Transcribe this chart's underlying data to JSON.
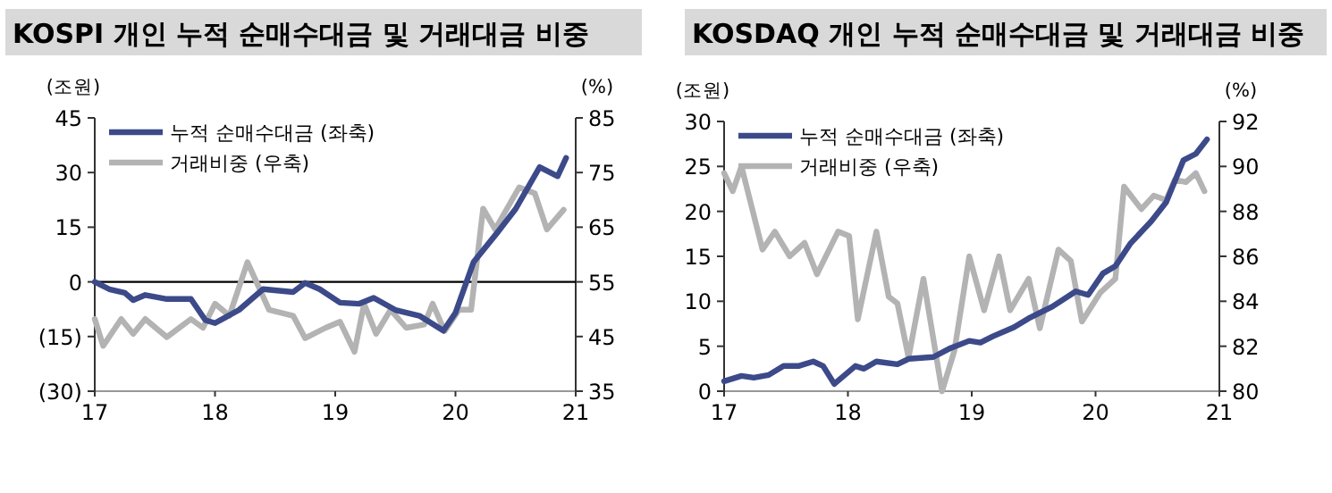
{
  "chart_data": [
    {
      "type": "line",
      "title": "KOSPI 개인 누적 순매수대금 및 거래대금 비중",
      "ylabel": "(조원)",
      "y2label": "(%)",
      "xlim": [
        17,
        21
      ],
      "xticks": [
        17,
        18,
        19,
        20,
        21
      ],
      "ylim": [
        -30,
        45
      ],
      "yticks": [
        {
          "value": -30,
          "label": "(30)"
        },
        {
          "value": -15,
          "label": "(15)"
        },
        0,
        15,
        30,
        45
      ],
      "y2lim": [
        35,
        85
      ],
      "y2ticks": [
        35,
        45,
        55,
        65,
        75,
        85
      ],
      "ref_lines": [
        {
          "axis": "y",
          "value": 0,
          "color": "#000000"
        }
      ],
      "legend": "top left",
      "grid": false,
      "series": [
        {
          "name": "누적 순매수대금 (좌축)",
          "color": "#3c4a8a",
          "x": [
            17.0,
            17.12,
            17.25,
            17.32,
            17.42,
            17.6,
            17.8,
            17.92,
            18.0,
            18.2,
            18.4,
            18.65,
            18.75,
            18.87,
            19.04,
            19.2,
            19.32,
            19.5,
            19.7,
            19.9,
            20.0,
            20.15,
            20.35,
            20.5,
            20.7,
            20.85,
            20.92
          ],
          "values": [
            0,
            -2,
            -3,
            -5,
            -3.6,
            -4.7,
            -4.7,
            -10.5,
            -11.3,
            -7.7,
            -2,
            -2.8,
            -0.3,
            -2,
            -5.7,
            -6,
            -4.4,
            -7.7,
            -9.3,
            -13.4,
            -8.5,
            5.4,
            13.6,
            20,
            31.5,
            29,
            34
          ]
        },
        {
          "name": "거래비중 (우축)",
          "color": "#b3b3b3",
          "axis": "y2",
          "x": [
            17.0,
            17.07,
            17.22,
            17.32,
            17.42,
            17.6,
            17.8,
            17.9,
            18.0,
            18.12,
            18.27,
            18.45,
            18.65,
            18.75,
            18.92,
            19.04,
            19.16,
            19.24,
            19.34,
            19.46,
            19.59,
            19.74,
            19.81,
            19.91,
            20.03,
            20.13,
            20.23,
            20.33,
            20.53,
            20.66,
            20.76,
            20.9
          ],
          "values": [
            48.2,
            43.3,
            48.2,
            45.5,
            48.2,
            44.9,
            48.2,
            46.6,
            51,
            48.8,
            58.6,
            49.9,
            48.8,
            44.7,
            46.6,
            47.7,
            42.2,
            51,
            45.5,
            49.9,
            46.6,
            47.2,
            51,
            46,
            49.9,
            49.9,
            68.4,
            64.6,
            72.3,
            71.2,
            64.6,
            68.2
          ]
        }
      ]
    },
    {
      "type": "line",
      "title": "KOSDAQ 개인 누적 순매수대금 및 거래대금 비중",
      "ylabel": "(조원)",
      "y2label": "(%)",
      "xlim": [
        17,
        21
      ],
      "xticks": [
        17,
        18,
        19,
        20,
        21
      ],
      "ylim": [
        0,
        30
      ],
      "yticks": [
        0,
        5,
        10,
        15,
        20,
        25,
        30
      ],
      "y2lim": [
        80,
        92
      ],
      "y2ticks": [
        80,
        82,
        84,
        86,
        88,
        90,
        92
      ],
      "legend": "top left",
      "grid": false,
      "series": [
        {
          "name": "누적 순매수대금 (좌축)",
          "color": "#3c4a8a",
          "x": [
            17.0,
            17.14,
            17.24,
            17.36,
            17.48,
            17.6,
            17.72,
            17.8,
            17.89,
            18.06,
            18.13,
            18.23,
            18.4,
            18.49,
            18.69,
            18.83,
            18.98,
            19.07,
            19.17,
            19.34,
            19.46,
            19.65,
            19.84,
            19.94,
            20.06,
            20.16,
            20.28,
            20.45,
            20.57,
            20.71,
            20.81,
            20.9
          ],
          "values": [
            1.1,
            1.7,
            1.5,
            1.8,
            2.8,
            2.8,
            3.3,
            2.8,
            0.8,
            2.8,
            2.5,
            3.3,
            3,
            3.6,
            3.8,
            4.8,
            5.6,
            5.4,
            6.1,
            7.1,
            8.1,
            9.4,
            11.1,
            10.7,
            13.1,
            13.9,
            16.4,
            18.9,
            21,
            25.7,
            26.4,
            28
          ]
        },
        {
          "name": "거래비중 (우축)",
          "color": "#b3b3b3",
          "axis": "y2",
          "x": [
            17.0,
            17.07,
            17.14,
            17.31,
            17.41,
            17.53,
            17.65,
            17.75,
            17.92,
            18.01,
            18.08,
            18.23,
            18.33,
            18.4,
            18.49,
            18.61,
            18.76,
            18.86,
            18.98,
            19.1,
            19.22,
            19.31,
            19.46,
            19.55,
            19.7,
            19.8,
            19.89,
            20.04,
            20.16,
            20.23,
            20.37,
            20.47,
            20.57,
            20.64,
            20.73,
            20.81,
            20.88
          ],
          "values": [
            89.7,
            88.9,
            90,
            86.3,
            87.1,
            86,
            86.6,
            85.2,
            87.1,
            86.9,
            83.2,
            87.1,
            84.2,
            83.9,
            81.5,
            85,
            80,
            81.8,
            86,
            83.6,
            86,
            83.6,
            85,
            82.8,
            86.3,
            85.8,
            83.1,
            84.4,
            85,
            89.1,
            88.1,
            88.7,
            88.5,
            89.4,
            89.3,
            89.7,
            88.9
          ]
        }
      ]
    }
  ]
}
